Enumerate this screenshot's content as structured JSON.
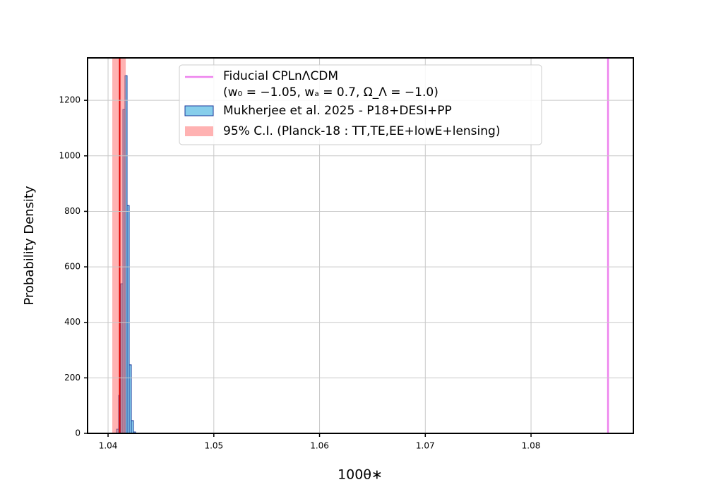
{
  "chart_data": {
    "type": "histogram",
    "xlabel": "100θ∗",
    "ylabel": "Probability Density",
    "xlim": [
      1.03806,
      1.08968
    ],
    "ylim": [
      0,
      1353
    ],
    "xticks": [
      1.04,
      1.05,
      1.06,
      1.07,
      1.08
    ],
    "yticks": [
      0,
      200,
      400,
      600,
      800,
      1000,
      1200
    ],
    "grid": true,
    "legend": "upper center",
    "bins": [
      1.0408,
      1.041,
      1.0412,
      1.0414,
      1.0416,
      1.0418,
      1.042,
      1.0422,
      1.0424,
      1.0426
    ],
    "counts": [
      15,
      137,
      539,
      1167,
      1289,
      821,
      247,
      46,
      5
    ],
    "name": "Mukherjee et al. 2025 - P18+DESI+PP",
    "color": "#87ceeb",
    "edgecolor": "#1a3a9e",
    "vline": {
      "name": [
        "Fiducial CPLnΛCDM",
        "(w₀ = −1.05,  wₐ = 0.7,  Ω_Λ = −1.0)"
      ],
      "x": 1.08728,
      "color": "#ee82ee"
    },
    "span": {
      "name": "95% C.I. (Planck-18 : TT,TE,EE+lowE+lensing)",
      "xmin": 1.0404,
      "xmax": 1.04167,
      "color": "#ff6666",
      "alpha": 0.5,
      "line": 1.0411,
      "line_color": "#e00000"
    }
  }
}
